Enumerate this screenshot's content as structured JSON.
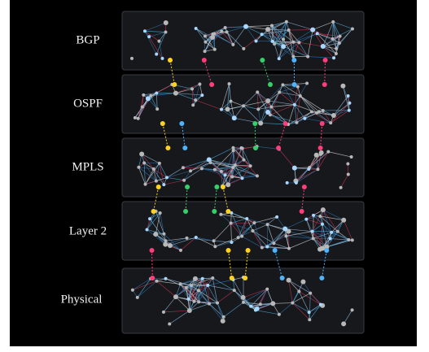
{
  "layers": [
    "BGP",
    "OSPF",
    "MPLS",
    "Layer 2",
    "Physical"
  ]
}
